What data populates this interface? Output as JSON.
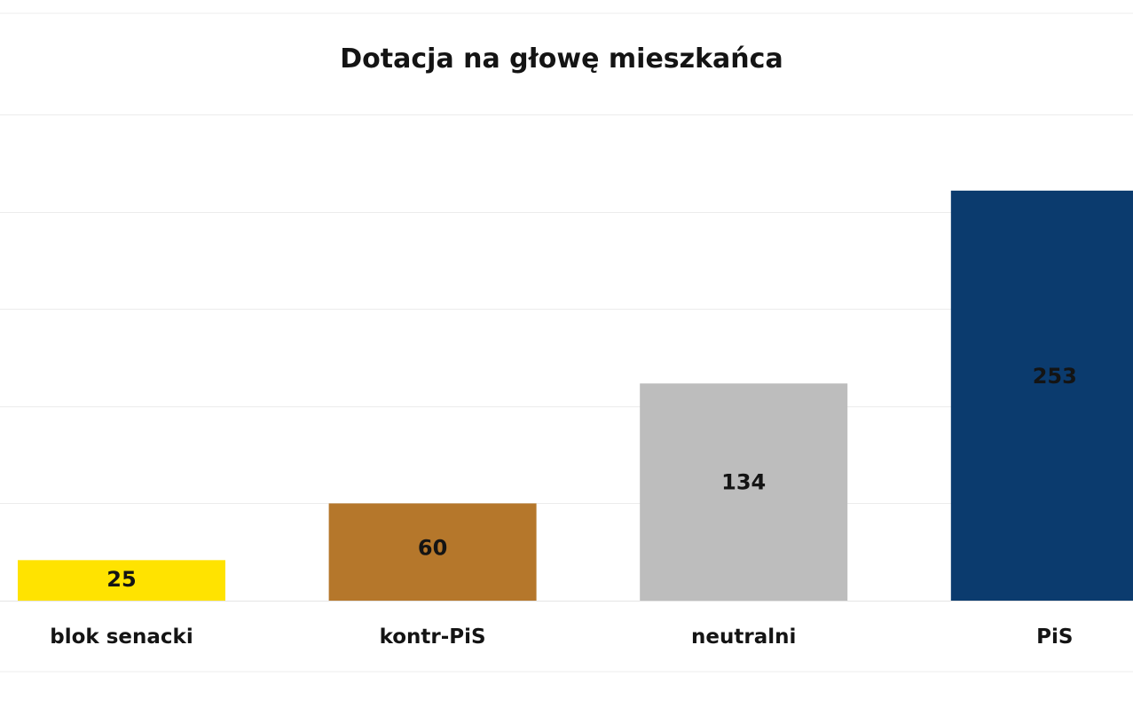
{
  "chart_data": {
    "type": "bar",
    "title": "Dotacja na głowę mieszkańca",
    "categories": [
      "blok senacki",
      "kontr-PiS",
      "neutralni",
      "PiS"
    ],
    "values": [
      25,
      60,
      134,
      253
    ],
    "colors": [
      "#ffe300",
      "#b5772b",
      "#bdbdbd",
      "#0b3b6e"
    ],
    "ylim": [
      0,
      300
    ],
    "grid": true,
    "legend": "none",
    "xlabel": "",
    "ylabel": ""
  }
}
